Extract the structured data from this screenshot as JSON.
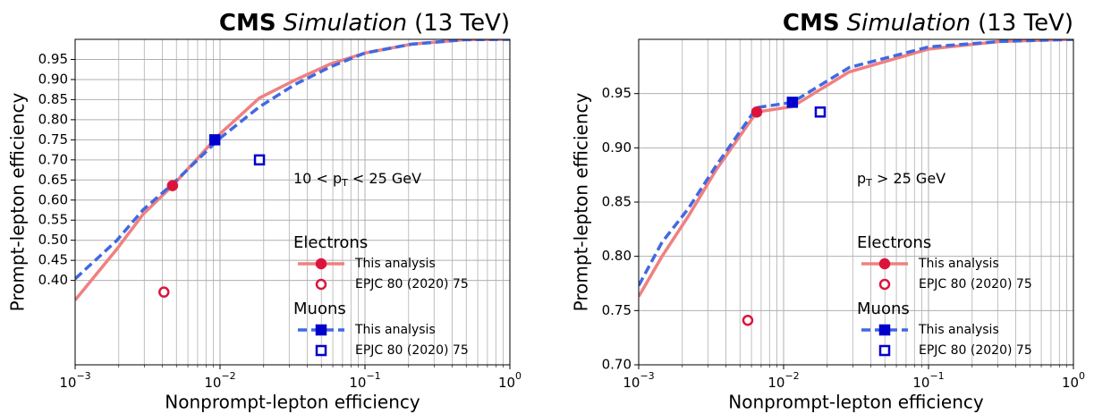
{
  "chart_data": [
    {
      "type": "line",
      "title": {
        "bold": "CMS",
        "italic": "Simulation",
        "plain": "(13 TeV)"
      },
      "xlabel": "Nonprompt-lepton efficiency",
      "ylabel": "Prompt-lepton efficiency",
      "xscale": "log",
      "grid": true,
      "annotation": {
        "text": "10 < p",
        "sub": "T",
        "tail": " < 25 GeV"
      },
      "xlim": [
        0.001,
        1
      ],
      "ylim": [
        0.19,
        1.0
      ],
      "xticks": [
        {
          "value": 0.001,
          "label": "10",
          "exp": "−3"
        },
        {
          "value": 0.01,
          "label": "10",
          "exp": "−2"
        },
        {
          "value": 0.1,
          "label": "10",
          "exp": "−1"
        },
        {
          "value": 1,
          "label": "10",
          "exp": "0"
        }
      ],
      "xminorticks": [
        0.002,
        0.003,
        0.004,
        0.005,
        0.006,
        0.007,
        0.008,
        0.009,
        0.02,
        0.03,
        0.04,
        0.05,
        0.06,
        0.07,
        0.08,
        0.09,
        0.2,
        0.3,
        0.4,
        0.5,
        0.6,
        0.7,
        0.8,
        0.9
      ],
      "yticks": [
        {
          "value": 0.4,
          "label": "0.40"
        },
        0.45,
        {
          "value": 0.5,
          "label": "0.50"
        },
        0.55,
        {
          "value": 0.6,
          "label": "0.60"
        },
        0.65,
        {
          "value": 0.7,
          "label": "0.70"
        },
        0.75,
        {
          "value": 0.8,
          "label": "0.80"
        },
        0.85,
        {
          "value": 0.9,
          "label": "0.90"
        },
        0.95
      ],
      "series": [
        {
          "name": "Electrons",
          "color": "#f08080",
          "marker_color": "#dc143c",
          "dashed": false,
          "x": [
            0.001,
            0.00192,
            0.00295,
            0.0047,
            0.01,
            0.0187,
            0.033,
            0.058,
            0.1,
            0.21,
            0.49,
            1
          ],
          "values": [
            0.351,
            0.476,
            0.565,
            0.636,
            0.765,
            0.854,
            0.899,
            0.939,
            0.966,
            0.988,
            0.999,
            1.0
          ],
          "points": [
            {
              "label": "This analysis",
              "x": 0.0047,
              "y": 0.636,
              "filled": true
            },
            {
              "label": "EPJC 80 (2020) 75",
              "x": 0.0041,
              "y": 0.371,
              "filled": false
            }
          ]
        },
        {
          "name": "Muons",
          "color": "#4169e1",
          "marker_color": "#0000cd",
          "dashed": true,
          "x": [
            0.001,
            0.00192,
            0.00295,
            0.0047,
            0.01,
            0.0187,
            0.033,
            0.058,
            0.1,
            0.21,
            0.49,
            1
          ],
          "values": [
            0.404,
            0.498,
            0.576,
            0.64,
            0.754,
            0.832,
            0.888,
            0.932,
            0.966,
            0.988,
            0.999,
            1.0
          ],
          "points": [
            {
              "label": "This analysis",
              "x": 0.0092,
              "y": 0.75,
              "filled": true
            },
            {
              "label": "EPJC 80 (2020) 75",
              "x": 0.0187,
              "y": 0.7,
              "filled": false
            }
          ]
        }
      ]
    },
    {
      "type": "line",
      "title": {
        "bold": "CMS",
        "italic": "Simulation",
        "plain": "(13 TeV)"
      },
      "xlabel": "Nonprompt-lepton efficiency",
      "ylabel": "Prompt-lepton efficiency",
      "xscale": "log",
      "grid": true,
      "annotation": {
        "text": "p",
        "sub": "T",
        "tail": " > 25 GeV"
      },
      "xlim": [
        0.001,
        1
      ],
      "ylim": [
        0.7,
        1.0
      ],
      "xticks": [
        {
          "value": 0.001,
          "label": "10",
          "exp": "−3"
        },
        {
          "value": 0.01,
          "label": "10",
          "exp": "−2"
        },
        {
          "value": 0.1,
          "label": "10",
          "exp": "−1"
        },
        {
          "value": 1,
          "label": "10",
          "exp": "0"
        }
      ],
      "xminorticks": [
        0.002,
        0.003,
        0.004,
        0.005,
        0.006,
        0.007,
        0.008,
        0.009,
        0.02,
        0.03,
        0.04,
        0.05,
        0.06,
        0.07,
        0.08,
        0.09,
        0.2,
        0.3,
        0.4,
        0.5,
        0.6,
        0.7,
        0.8,
        0.9
      ],
      "yticks": [
        {
          "value": 0.7,
          "label": "0.70"
        },
        0.75,
        {
          "value": 0.8,
          "label": "0.80"
        },
        0.85,
        {
          "value": 0.9,
          "label": "0.90"
        },
        0.95
      ],
      "series": [
        {
          "name": "Electrons",
          "color": "#f08080",
          "marker_color": "#dc143c",
          "dashed": false,
          "x": [
            0.001,
            0.00145,
            0.0022,
            0.0034,
            0.00653,
            0.0115,
            0.0284,
            0.1,
            0.31,
            1
          ],
          "values": [
            0.763,
            0.8,
            0.837,
            0.879,
            0.933,
            0.938,
            0.97,
            0.991,
            0.998,
            1.0
          ],
          "points": [
            {
              "label": "This analysis",
              "x": 0.00653,
              "y": 0.933,
              "filled": true
            },
            {
              "label": "EPJC 80 (2020) 75",
              "x": 0.00566,
              "y": 0.741,
              "filled": false
            }
          ]
        },
        {
          "name": "Muons",
          "color": "#4169e1",
          "marker_color": "#0000cd",
          "dashed": true,
          "x": [
            0.001,
            0.00145,
            0.0022,
            0.0034,
            0.00653,
            0.0115,
            0.0284,
            0.1,
            0.31,
            1
          ],
          "values": [
            0.773,
            0.813,
            0.844,
            0.883,
            0.937,
            0.942,
            0.974,
            0.993,
            0.998,
            1.0
          ],
          "points": [
            {
              "label": "This analysis",
              "x": 0.0115,
              "y": 0.942,
              "filled": true
            },
            {
              "label": "EPJC 80 (2020) 75",
              "x": 0.0179,
              "y": 0.933,
              "filled": false
            }
          ]
        }
      ]
    }
  ]
}
